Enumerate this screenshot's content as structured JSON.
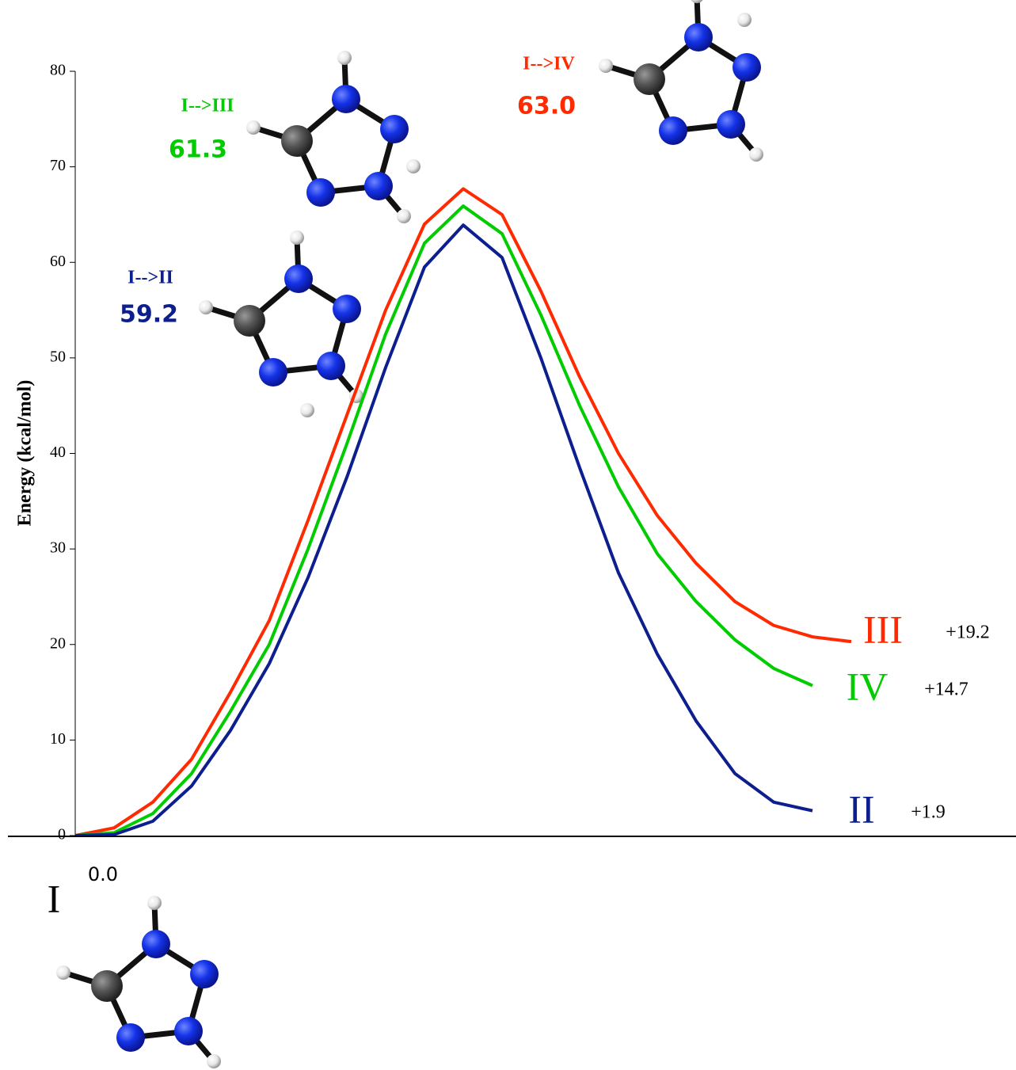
{
  "chart_data": {
    "type": "line",
    "y_label": "Energy (kcal/mol)",
    "ylim": [
      0,
      80
    ],
    "yticks": [
      0,
      10,
      20,
      30,
      40,
      50,
      60,
      70,
      80
    ],
    "categories": [
      null,
      null,
      null,
      null,
      null,
      null,
      null,
      null,
      null,
      null,
      null,
      null,
      null,
      null,
      null,
      null,
      null,
      null,
      null,
      null,
      null
    ],
    "series": [
      {
        "name": "III",
        "color": "#ff2a00",
        "values": [
          0,
          0.8,
          3.5,
          8,
          15,
          22.5,
          33,
          44,
          55,
          64,
          67.7,
          65,
          57,
          48,
          40,
          33.5,
          28.5,
          24.5,
          22,
          20.8,
          20.3
        ]
      },
      {
        "name": "IV",
        "color": "#00cc00",
        "values": [
          0,
          0.3,
          2.3,
          6.5,
          13,
          20,
          30,
          41,
          52.5,
          62,
          65.9,
          63,
          54.5,
          45,
          36.5,
          29.5,
          24.5,
          20.5,
          17.5,
          15.7,
          null
        ]
      },
      {
        "name": "II",
        "color": "#0d1f8f",
        "values": [
          0,
          0.1,
          1.5,
          5.2,
          11,
          18,
          27,
          37.5,
          49,
          59.5,
          63.9,
          60.5,
          50,
          38.5,
          27.5,
          19,
          12,
          6.5,
          3.5,
          2.6,
          null
        ]
      }
    ],
    "end_labels": [
      "+19.2",
      "+14.7",
      "+1.9"
    ],
    "start": {
      "name": "I",
      "label": "0.0"
    },
    "annotations": [
      {
        "title": "I-->II",
        "value": "59.2",
        "color": "#0d1f8f"
      },
      {
        "title": "I-->III",
        "value": "61.3",
        "color": "#00cc00"
      },
      {
        "title": "I-->IV",
        "value": "63.0",
        "color": "#ff2a00"
      }
    ]
  }
}
